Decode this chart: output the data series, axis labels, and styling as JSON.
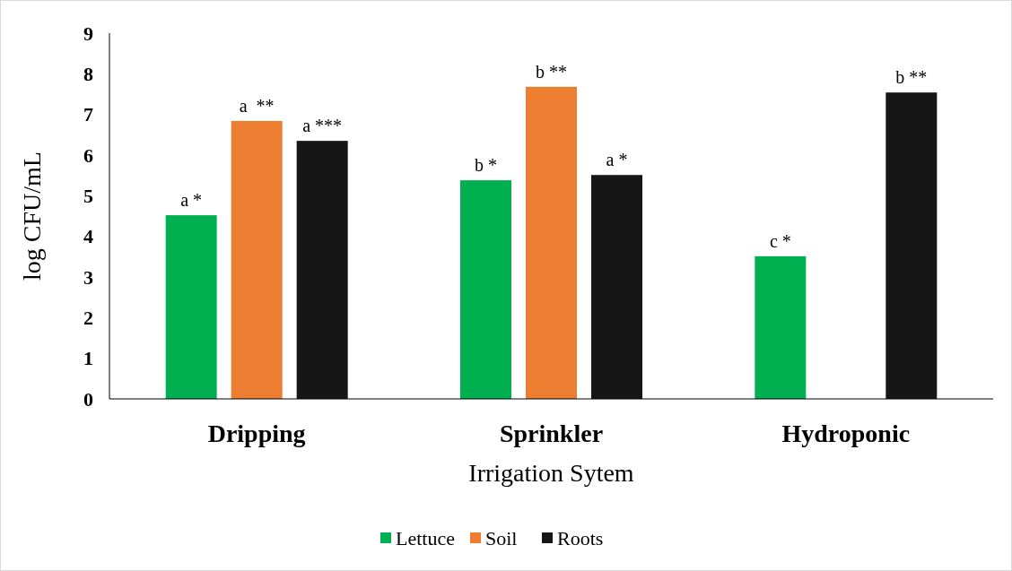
{
  "chart_data": {
    "type": "bar",
    "xlabel": "Irrigation Sytem",
    "ylabel": "log CFU/mL",
    "categories": [
      "Dripping",
      "Sprinkler",
      "Hydroponic"
    ],
    "series": [
      {
        "name": "Lettuce",
        "color": "#00b050",
        "values": [
          4.52,
          5.38,
          3.51
        ],
        "value_labels": [
          "a *",
          "b *",
          "c *"
        ]
      },
      {
        "name": "Soil",
        "color": "#ed7d31",
        "values": [
          6.84,
          7.68,
          null
        ],
        "value_labels": [
          "a  **",
          "b **",
          null
        ]
      },
      {
        "name": "Roots",
        "color": "#161616",
        "values": [
          6.35,
          5.51,
          7.54
        ],
        "value_labels": [
          "a ***",
          "a *",
          "b **"
        ]
      }
    ],
    "ylim": [
      0,
      9
    ],
    "yticks": [
      0,
      1,
      2,
      3,
      4,
      5,
      6,
      7,
      8,
      9
    ],
    "grid": false,
    "legend": "bottom"
  }
}
